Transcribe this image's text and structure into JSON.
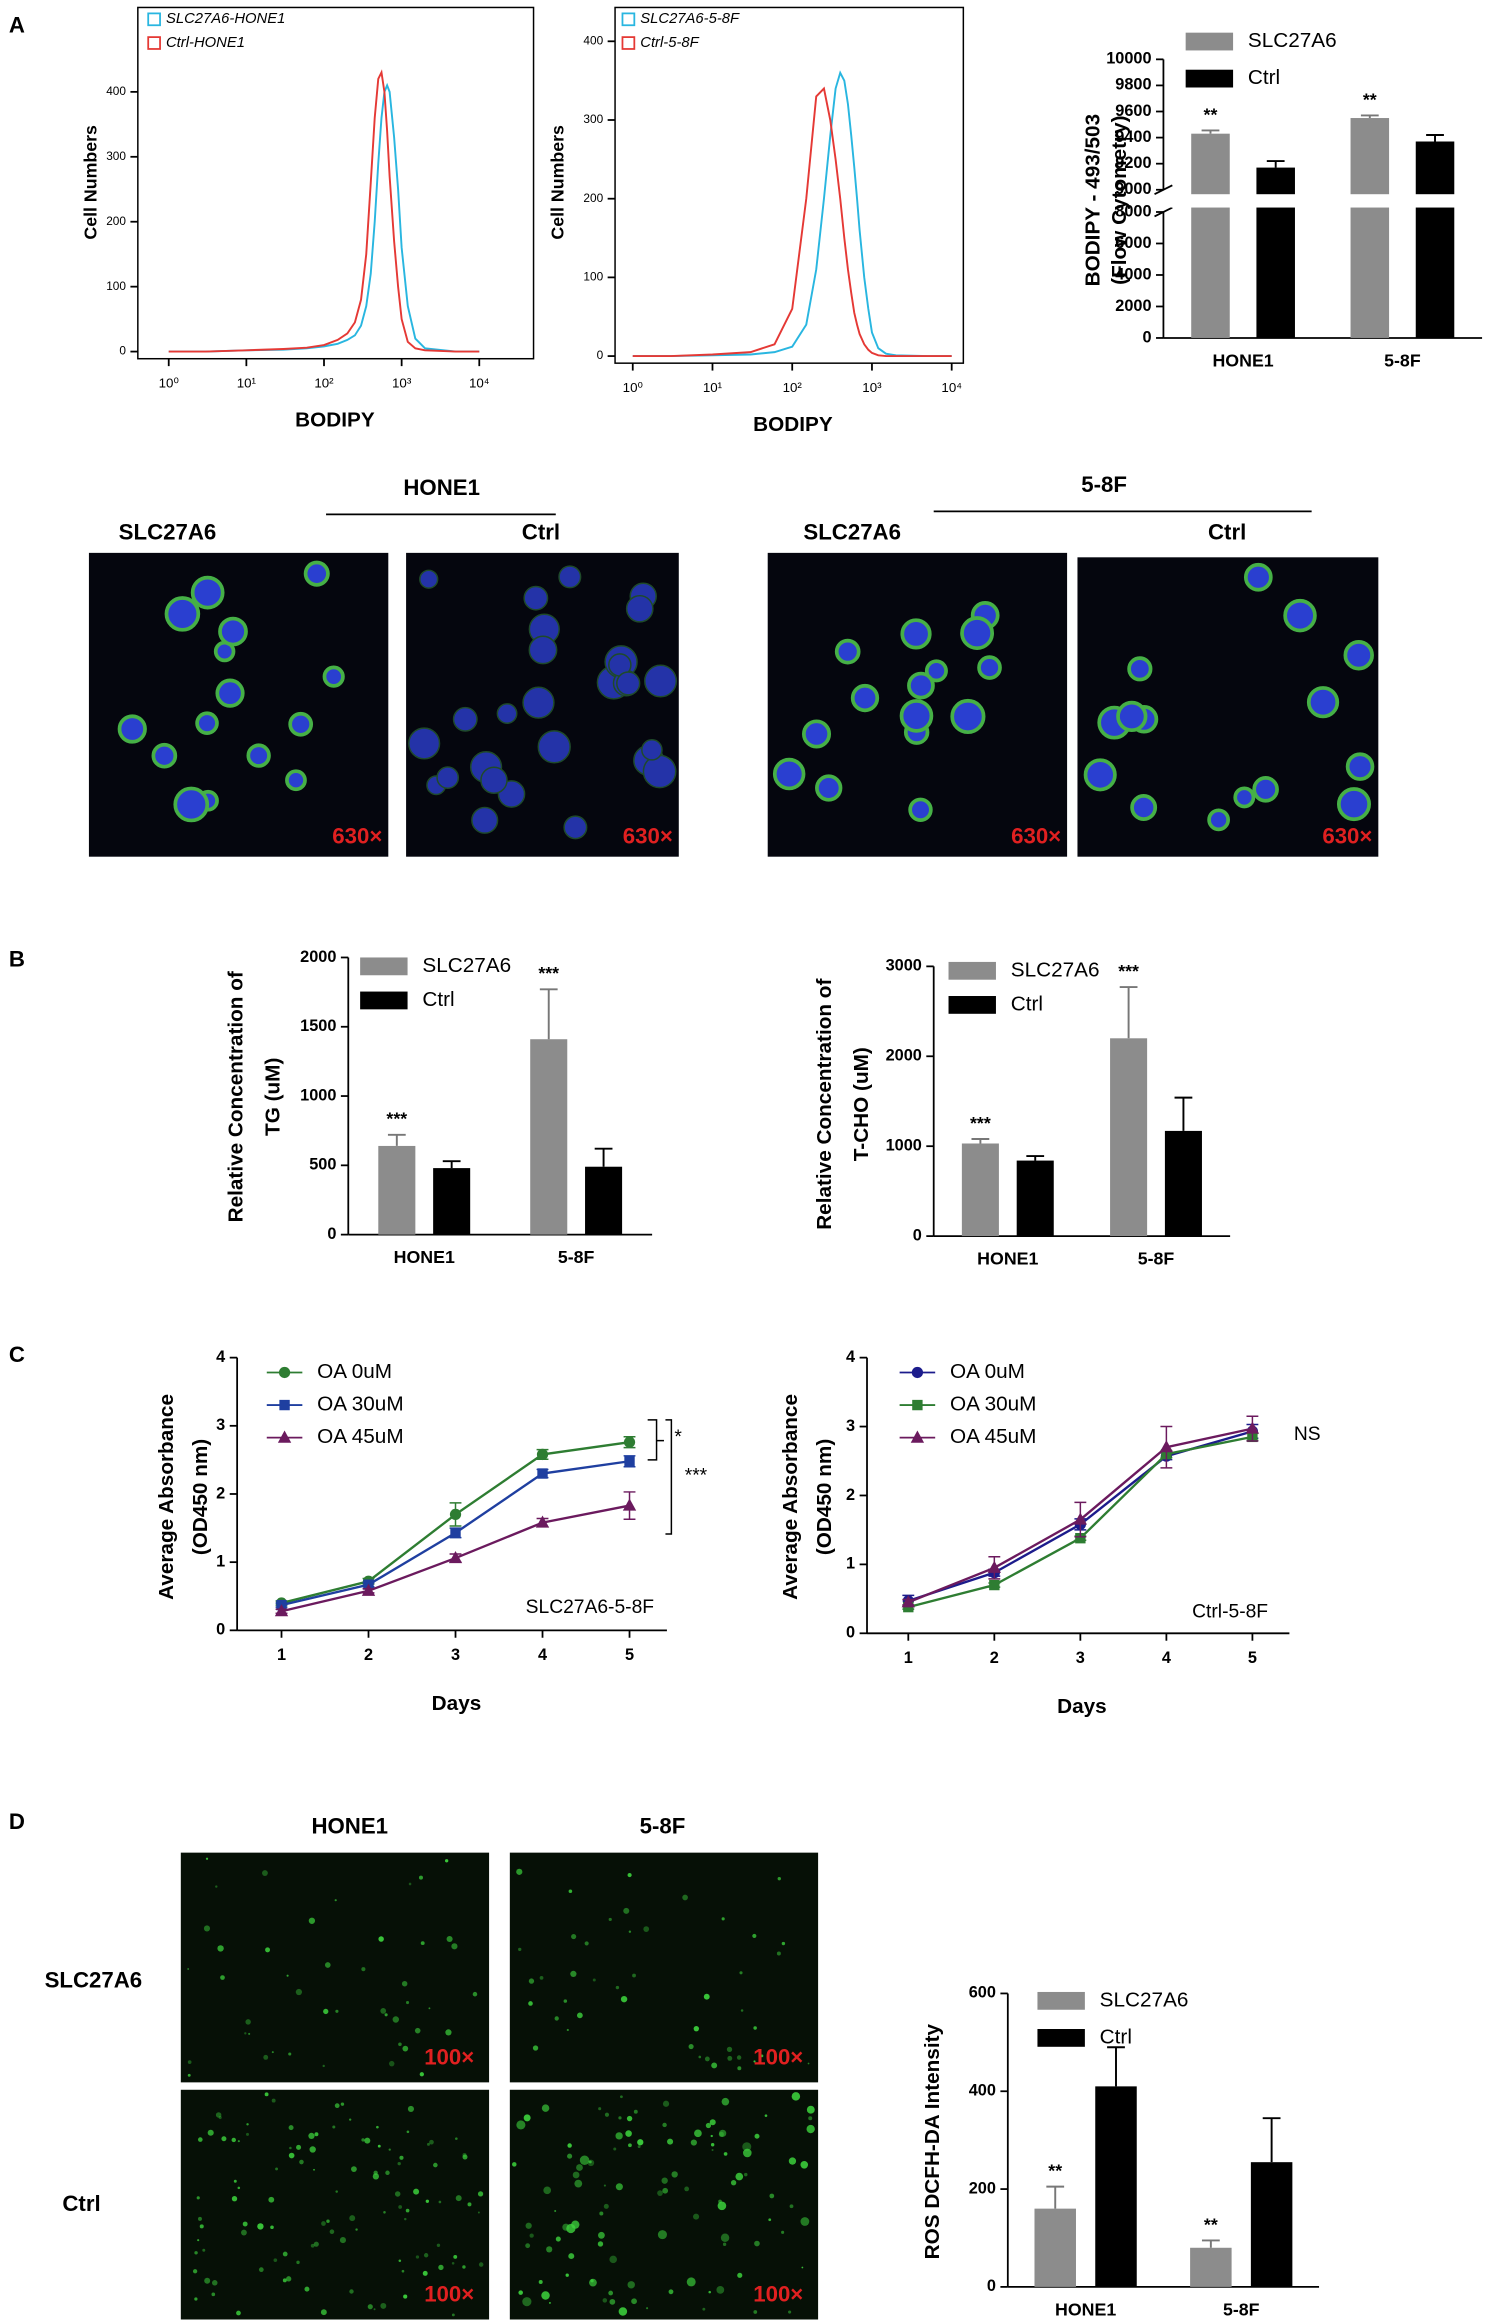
{
  "panel_labels": [
    "A",
    "B",
    "C",
    "D"
  ],
  "figure_a_images": {
    "groups": [
      {
        "title": "HONE1",
        "columns": [
          "SLC27A6",
          "Ctrl"
        ]
      },
      {
        "title": "5-8F",
        "columns": [
          "SLC27A6",
          "Ctrl"
        ]
      }
    ],
    "magnification": "630×"
  },
  "figure_d_images": {
    "columns": [
      "HONE1",
      "5-8F"
    ],
    "rows": [
      "SLC27A6",
      "Ctrl"
    ],
    "magnification": "100×"
  },
  "chart_data": [
    {
      "type": "line",
      "xlog": true,
      "xlabel": "BODIPY",
      "ylabel": "Cell Numbers",
      "x": [
        1,
        3,
        10,
        30,
        60,
        100,
        150,
        200,
        250,
        300,
        350,
        400,
        450,
        500,
        550,
        600,
        650,
        700,
        800,
        900,
        1000,
        1200,
        1500,
        2000,
        5000,
        10000
      ],
      "series": [
        {
          "name": "SLC27A6-HONE1",
          "color": "#29b6e0",
          "values": [
            0,
            0,
            2,
            3,
            5,
            8,
            12,
            18,
            25,
            40,
            70,
            120,
            200,
            290,
            360,
            400,
            410,
            400,
            330,
            250,
            160,
            70,
            20,
            5,
            0,
            0
          ]
        },
        {
          "name": "Ctrl-HONE1",
          "color": "#e53935",
          "values": [
            0,
            0,
            2,
            4,
            6,
            10,
            18,
            28,
            45,
            80,
            150,
            260,
            360,
            420,
            430,
            400,
            340,
            270,
            170,
            100,
            50,
            15,
            5,
            2,
            0,
            0
          ]
        }
      ],
      "xlim": [
        0.4,
        50000
      ],
      "xticks": [
        {
          "value": 1,
          "label": "10⁰"
        },
        {
          "value": 10,
          "label": "10¹"
        },
        {
          "value": 100,
          "label": "10²"
        },
        {
          "value": 1000,
          "label": "10³"
        },
        {
          "value": 10000,
          "label": "10⁴"
        }
      ],
      "ylim": [
        -11,
        530
      ],
      "yticks": [
        0,
        100,
        200,
        300,
        400
      ]
    },
    {
      "type": "line",
      "xlog": true,
      "xlabel": "BODIPY",
      "ylabel": "Cell Numbers",
      "x": [
        1,
        3,
        10,
        30,
        60,
        100,
        150,
        200,
        250,
        300,
        350,
        400,
        450,
        500,
        550,
        600,
        650,
        700,
        800,
        900,
        1000,
        1200,
        1500,
        2000,
        5000,
        10000
      ],
      "series": [
        {
          "name": "SLC27A6-5-8F",
          "color": "#29b6e0",
          "values": [
            0,
            0,
            1,
            2,
            5,
            12,
            40,
            110,
            200,
            280,
            340,
            360,
            350,
            320,
            280,
            240,
            200,
            160,
            100,
            60,
            30,
            10,
            3,
            1,
            0,
            0
          ]
        },
        {
          "name": "Ctrl-5-8F",
          "color": "#e53935",
          "values": [
            0,
            0,
            2,
            5,
            15,
            60,
            200,
            330,
            340,
            300,
            250,
            200,
            150,
            110,
            80,
            55,
            40,
            28,
            15,
            8,
            4,
            1,
            0,
            0,
            0,
            0
          ]
        }
      ],
      "xlim": [
        0.6,
        14000
      ],
      "xticks": [
        {
          "value": 1,
          "label": "10⁰"
        },
        {
          "value": 10,
          "label": "10¹"
        },
        {
          "value": 100,
          "label": "10²"
        },
        {
          "value": 1000,
          "label": "10³"
        },
        {
          "value": 10000,
          "label": "10⁴"
        }
      ],
      "ylim": [
        -9,
        443
      ],
      "yticks": [
        0,
        100,
        200,
        300,
        400
      ]
    },
    {
      "type": "bar",
      "ylabel": [
        "BODIPY - 493/503",
        "(Flow Cytometry)"
      ],
      "categories": [
        "HONE1",
        "5-8F"
      ],
      "series": [
        {
          "name": "SLC27A6",
          "color": "#8c8c8c",
          "values": [
            9430,
            9550
          ],
          "errors": [
            25,
            20
          ]
        },
        {
          "name": "Ctrl",
          "color": "#000000",
          "values": [
            9170,
            9370
          ],
          "errors": [
            50,
            50
          ]
        }
      ],
      "ylim": [
        0,
        10000
      ],
      "ybreak": [
        8000,
        9000
      ],
      "yticks": [
        0,
        2000,
        4000,
        6000,
        8000,
        9000,
        9200,
        9400,
        9600,
        9800,
        10000
      ],
      "significance": [
        "**",
        "**"
      ]
    },
    {
      "type": "bar",
      "ylabel": [
        "Relative Concentration of",
        "TG (uM)"
      ],
      "categories": [
        "HONE1",
        "5-8F"
      ],
      "series": [
        {
          "name": "SLC27A6",
          "color": "#8c8c8c",
          "values": [
            640,
            1410
          ],
          "errors": [
            80,
            360
          ]
        },
        {
          "name": "Ctrl",
          "color": "#000000",
          "values": [
            480,
            490
          ],
          "errors": [
            50,
            130
          ]
        }
      ],
      "ylim": [
        0,
        2000
      ],
      "yticks": [
        0,
        500,
        1000,
        1500,
        2000
      ],
      "significance": [
        "***",
        "***"
      ]
    },
    {
      "type": "bar",
      "ylabel": [
        "Relative Concentration of",
        "T-CHO (uM)"
      ],
      "categories": [
        "HONE1",
        "5-8F"
      ],
      "series": [
        {
          "name": "SLC27A6",
          "color": "#8c8c8c",
          "values": [
            1030,
            2200
          ],
          "errors": [
            50,
            570
          ]
        },
        {
          "name": "Ctrl",
          "color": "#000000",
          "values": [
            840,
            1170
          ],
          "errors": [
            50,
            370
          ]
        }
      ],
      "ylim": [
        0,
        3000
      ],
      "yticks": [
        0,
        1000,
        2000,
        3000
      ],
      "significance": [
        "***",
        "***"
      ]
    },
    {
      "type": "line",
      "xlabel": "Days",
      "ylabel": [
        "Average Absorbance",
        "(OD450 nm)"
      ],
      "x": [
        1,
        2,
        3,
        4,
        5
      ],
      "series": [
        {
          "name": "OA 0uM",
          "color": "#2e7d32",
          "marker": "o",
          "values": [
            0.4,
            0.72,
            1.7,
            2.58,
            2.76
          ],
          "errors": [
            0.03,
            0.04,
            0.17,
            0.07,
            0.08
          ]
        },
        {
          "name": "OA 30uM",
          "color": "#1f3fa0",
          "marker": "s",
          "values": [
            0.37,
            0.67,
            1.43,
            2.3,
            2.48
          ],
          "errors": [
            0.03,
            0.03,
            0.07,
            0.06,
            0.08
          ]
        },
        {
          "name": "OA 45uM",
          "color": "#6b1a5e",
          "marker": "^",
          "values": [
            0.28,
            0.58,
            1.06,
            1.58,
            1.83
          ],
          "errors": [
            0.03,
            0.03,
            0.06,
            0.06,
            0.2
          ]
        }
      ],
      "xlim": [
        0.49,
        5.43
      ],
      "xticks": [
        1,
        2,
        3,
        4,
        5
      ],
      "ylim": [
        0,
        4
      ],
      "yticks": [
        0,
        1,
        2,
        3,
        4
      ],
      "annotations": [
        "*",
        "***"
      ],
      "note": "SLC27A6-5-8F"
    },
    {
      "type": "line",
      "xlabel": "Days",
      "ylabel": [
        "Average Absorbance",
        "(OD450 nm)"
      ],
      "x": [
        1,
        2,
        3,
        4,
        5
      ],
      "series": [
        {
          "name": "OA 0uM",
          "color": "#1c1c8c",
          "marker": "o",
          "values": [
            0.47,
            0.88,
            1.58,
            2.57,
            2.93
          ],
          "errors": [
            0.08,
            0.05,
            0.08,
            0.05,
            0.1
          ]
        },
        {
          "name": "OA 30uM",
          "color": "#2e7d32",
          "marker": "s",
          "values": [
            0.38,
            0.7,
            1.38,
            2.6,
            2.85
          ],
          "errors": [
            0.03,
            0.03,
            0.03,
            0.05,
            0.05
          ]
        },
        {
          "name": "OA 45uM",
          "color": "#6b1a5e",
          "marker": "^",
          "values": [
            0.45,
            0.95,
            1.65,
            2.7,
            2.97
          ],
          "errors": [
            0.04,
            0.16,
            0.25,
            0.3,
            0.18
          ]
        }
      ],
      "xlim": [
        0.52,
        5.43
      ],
      "xticks": [
        1,
        2,
        3,
        4,
        5
      ],
      "ylim": [
        0,
        4
      ],
      "yticks": [
        0,
        1,
        2,
        3,
        4
      ],
      "annotations": [
        "NS"
      ],
      "note": "Ctrl-5-8F"
    },
    {
      "type": "bar",
      "ylabel": "ROS DCFH-DA Intensity",
      "categories": [
        "HONE1",
        "5-8F"
      ],
      "series": [
        {
          "name": "SLC27A6",
          "color": "#8c8c8c",
          "values": [
            160,
            80
          ],
          "errors": [
            45,
            15
          ]
        },
        {
          "name": "Ctrl",
          "color": "#000000",
          "values": [
            410,
            255
          ],
          "errors": [
            80,
            90
          ]
        }
      ],
      "ylim": [
        0,
        600
      ],
      "yticks": [
        0,
        200,
        400,
        600
      ],
      "significance": [
        "**",
        "**"
      ]
    }
  ]
}
